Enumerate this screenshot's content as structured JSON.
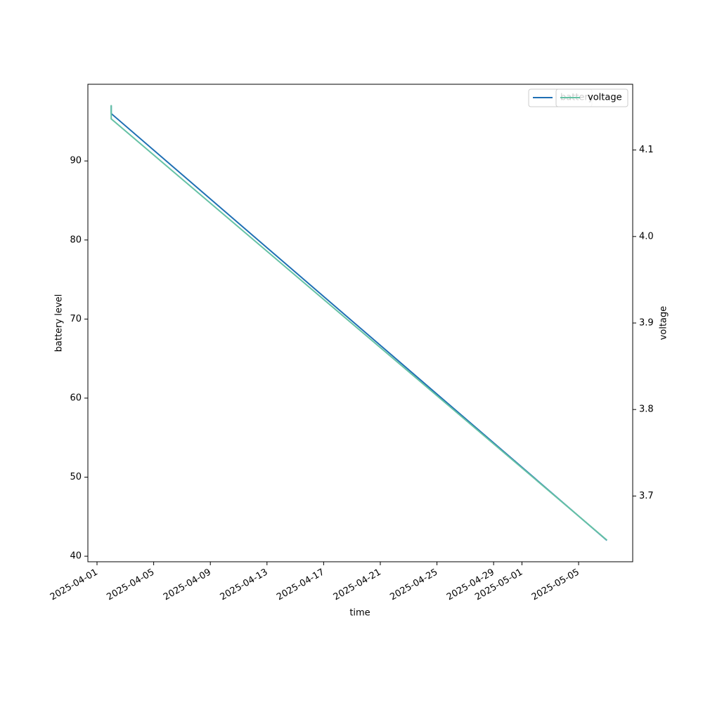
{
  "chart_data": {
    "type": "line",
    "x": [
      "2025-04-02",
      "2025-04-02",
      "2025-05-07"
    ],
    "series": [
      {
        "name": "battery",
        "color": "#1f6fb4",
        "values": [
          97,
          96,
          42
        ]
      },
      {
        "name": "voltage",
        "color": "#66c2a5",
        "axis": "y2",
        "values": [
          4.152,
          4.136,
          3.649
        ]
      }
    ],
    "xlabel": "time",
    "ylabel": "battery level",
    "y2label": "voltage",
    "xlim": [
      "2025-03-31T08:30:00Z",
      "2025-05-08T19:40:00Z"
    ],
    "xticks": [
      "2025-04-01",
      "2025-04-05",
      "2025-04-09",
      "2025-04-13",
      "2025-04-17",
      "2025-04-21",
      "2025-04-25",
      "2025-04-29",
      "2025-05-01",
      "2025-05-05"
    ],
    "ylim": [
      39.3,
      99.7
    ],
    "yticks": [
      40,
      50,
      60,
      70,
      80,
      90
    ],
    "y2lim": [
      3.624,
      4.176
    ],
    "y2ticks": [
      3.7,
      3.8,
      3.9,
      4.0,
      4.1
    ],
    "legend": "upper right"
  }
}
